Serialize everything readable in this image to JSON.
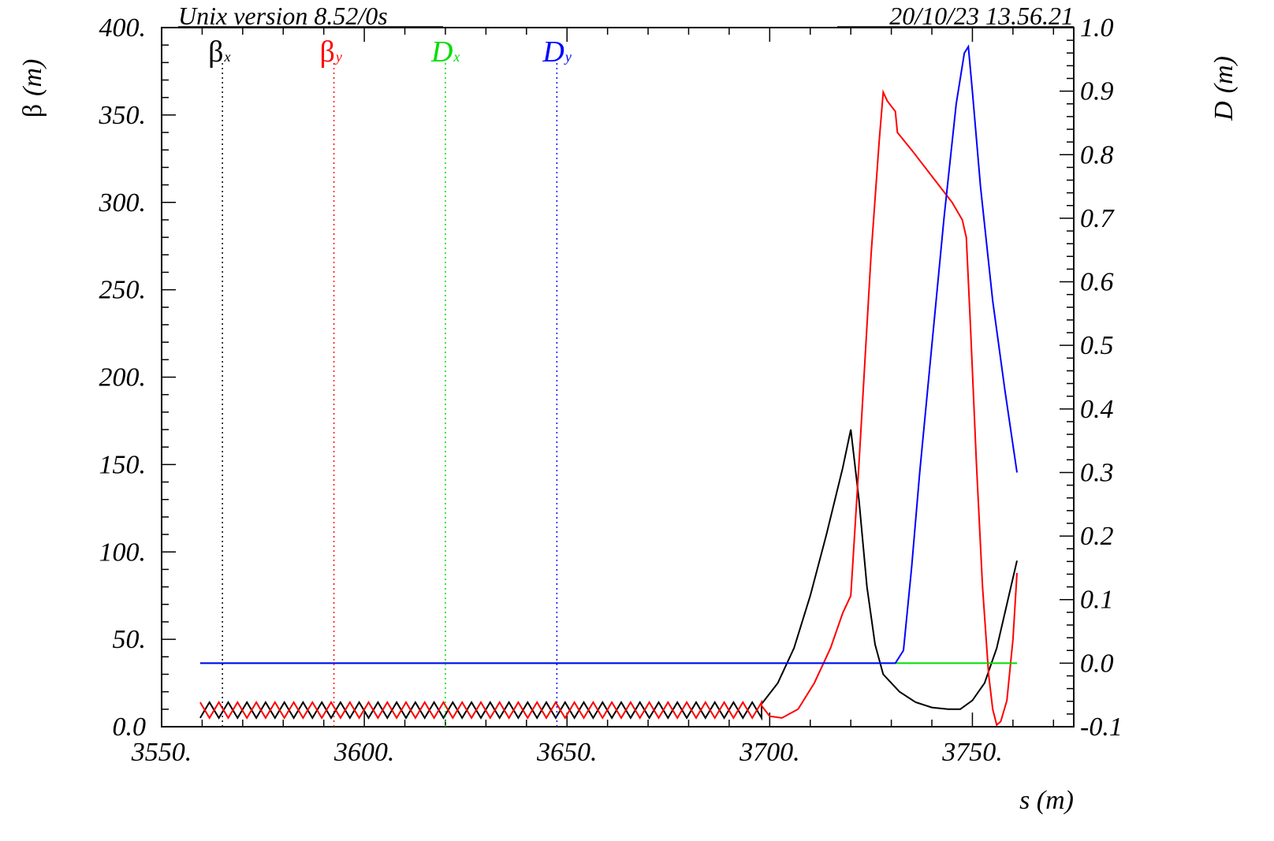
{
  "header": {
    "program": "Unix version 8.52/0s",
    "datestamp": "20/10/23  13.56.21"
  },
  "chart_data": {
    "type": "line",
    "xlabel": "s (m)",
    "ylabel_left": {
      "symbol": "β",
      "unit": "(m)"
    },
    "ylabel_right": {
      "symbol": "D",
      "unit": "(m)"
    },
    "xlim": [
      3550,
      3775
    ],
    "ylim_left": [
      0,
      400
    ],
    "ylim_right": [
      -0.1,
      1.0
    ],
    "x_ticks": [
      {
        "v": 3550,
        "label": "3550."
      },
      {
        "v": 3600,
        "label": "3600."
      },
      {
        "v": 3650,
        "label": "3650."
      },
      {
        "v": 3700,
        "label": "3700."
      },
      {
        "v": 3750,
        "label": "3750."
      }
    ],
    "y_left_ticks": [
      {
        "v": 0,
        "label": "0.0"
      },
      {
        "v": 50,
        "label": "50."
      },
      {
        "v": 100,
        "label": "100."
      },
      {
        "v": 150,
        "label": "150."
      },
      {
        "v": 200,
        "label": "200."
      },
      {
        "v": 250,
        "label": "250."
      },
      {
        "v": 300,
        "label": "300."
      },
      {
        "v": 350,
        "label": "350."
      },
      {
        "v": 400,
        "label": "400."
      }
    ],
    "y_right_ticks": [
      {
        "v": -0.1,
        "label": "-0.1"
      },
      {
        "v": 0.0,
        "label": "0.0"
      },
      {
        "v": 0.1,
        "label": "0.1"
      },
      {
        "v": 0.2,
        "label": "0.2"
      },
      {
        "v": 0.3,
        "label": "0.3"
      },
      {
        "v": 0.4,
        "label": "0.4"
      },
      {
        "v": 0.5,
        "label": "0.5"
      },
      {
        "v": 0.6,
        "label": "0.6"
      },
      {
        "v": 0.7,
        "label": "0.7"
      },
      {
        "v": 0.8,
        "label": "0.8"
      },
      {
        "v": 0.9,
        "label": "0.9"
      },
      {
        "v": 1.0,
        "label": "1.0"
      }
    ],
    "legend": [
      {
        "symbol": "β",
        "sub": "x",
        "color": "#000000",
        "marker_x": 3565
      },
      {
        "symbol": "β",
        "sub": "y",
        "color": "#ff0000",
        "marker_x": 3592.5
      },
      {
        "symbol": "D",
        "sub": "x",
        "color": "#00dd00",
        "marker_x": 3620
      },
      {
        "symbol": "D",
        "sub": "y",
        "color": "#0000ff",
        "marker_x": 3647.5
      }
    ],
    "fodo_region": {
      "start": 3559.5,
      "end": 3698,
      "cells": 30,
      "betax_low": 5,
      "betax_high": 14,
      "betay_low": 5,
      "betay_high": 14
    },
    "series": [
      {
        "color": "#000000",
        "axis": "left",
        "points": [
          [
            3698,
            13
          ],
          [
            3702,
            25
          ],
          [
            3706,
            45
          ],
          [
            3710,
            75
          ],
          [
            3714,
            110
          ],
          [
            3718,
            148
          ],
          [
            3720,
            170
          ],
          [
            3722,
            130
          ],
          [
            3724,
            80
          ],
          [
            3726,
            47
          ],
          [
            3728,
            30
          ],
          [
            3732,
            20
          ],
          [
            3736,
            14
          ],
          [
            3740,
            11
          ],
          [
            3744,
            10
          ],
          [
            3747,
            10
          ],
          [
            3750,
            15
          ],
          [
            3753,
            25
          ],
          [
            3756,
            45
          ],
          [
            3759,
            75
          ],
          [
            3761,
            95
          ]
        ]
      },
      {
        "color": "#ff0000",
        "axis": "left",
        "points": [
          [
            3698,
            12
          ],
          [
            3700,
            6
          ],
          [
            3703,
            5
          ],
          [
            3707,
            10
          ],
          [
            3711,
            25
          ],
          [
            3715,
            45
          ],
          [
            3718,
            65
          ],
          [
            3720,
            75
          ],
          [
            3722,
            150
          ],
          [
            3725,
            270
          ],
          [
            3727,
            335
          ],
          [
            3728,
            363
          ],
          [
            3729,
            358
          ],
          [
            3730,
            355
          ],
          [
            3731,
            352
          ],
          [
            3731.5,
            340
          ],
          [
            3735,
            330
          ],
          [
            3740,
            315
          ],
          [
            3745,
            300
          ],
          [
            3747.5,
            290
          ],
          [
            3748.5,
            280
          ],
          [
            3749.5,
            230
          ],
          [
            3751,
            150
          ],
          [
            3752.5,
            80
          ],
          [
            3754,
            30
          ],
          [
            3755,
            10
          ],
          [
            3756,
            1
          ],
          [
            3757,
            3
          ],
          [
            3758.5,
            15
          ],
          [
            3760,
            50
          ],
          [
            3761,
            88
          ]
        ]
      },
      {
        "color": "#00dd00",
        "axis": "right",
        "points": [
          [
            3559.5,
            0
          ],
          [
            3761,
            0
          ]
        ]
      },
      {
        "color": "#0000ff",
        "axis": "right",
        "points": [
          [
            3559.5,
            0
          ],
          [
            3731,
            0
          ],
          [
            3733,
            0.02
          ],
          [
            3735,
            0.15
          ],
          [
            3737,
            0.3
          ],
          [
            3740,
            0.5
          ],
          [
            3743,
            0.7
          ],
          [
            3746,
            0.88
          ],
          [
            3748,
            0.96
          ],
          [
            3749,
            0.97
          ],
          [
            3750,
            0.9
          ],
          [
            3752,
            0.75
          ],
          [
            3755,
            0.57
          ],
          [
            3758,
            0.43
          ],
          [
            3761,
            0.3
          ]
        ]
      }
    ]
  }
}
